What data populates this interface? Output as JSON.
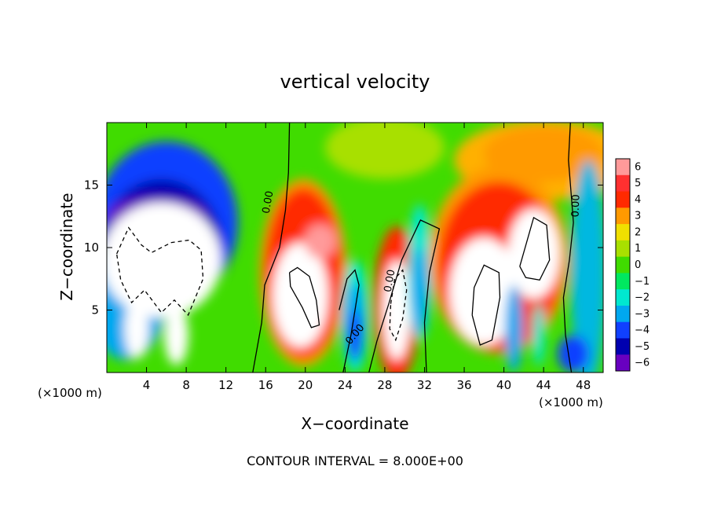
{
  "chart_data": {
    "type": "heatmap",
    "title": "vertical velocity",
    "xlabel": "X−coordinate",
    "ylabel": "Z−coordinate",
    "x_unit_label": "(×1000 m)",
    "y_unit_label": "(×1000 m)",
    "xlim": [
      0,
      50
    ],
    "ylim": [
      0,
      20
    ],
    "x_ticks": [
      4,
      8,
      12,
      16,
      20,
      24,
      28,
      32,
      36,
      40,
      44,
      48
    ],
    "y_ticks": [
      5,
      10,
      15
    ],
    "x_tick_labels": [
      "4",
      "8",
      "12",
      "16",
      "20",
      "24",
      "28",
      "32",
      "36",
      "40",
      "44",
      "48"
    ],
    "y_tick_labels": [
      "5",
      "10",
      "15"
    ],
    "colorbar": {
      "range": [
        -6,
        6
      ],
      "levels": [
        6,
        5,
        4,
        3,
        2,
        1,
        0,
        -1,
        -2,
        -3,
        -4,
        -5,
        -6
      ],
      "labels": [
        "6",
        "5",
        "4",
        "3",
        "2",
        "1",
        "0",
        "−1",
        "−2",
        "−3",
        "−4",
        "−5",
        "−6"
      ],
      "colors": [
        "#ff9a9a",
        "#ff3030",
        "#ff2a00",
        "#ff9a00",
        "#f0e000",
        "#a8e000",
        "#40dc00",
        "#00e860",
        "#00e8d0",
        "#00a8f0",
        "#1040ff",
        "#0000b0",
        "#6800c0"
      ]
    },
    "contour_labels": [
      "0.00",
      "0.00",
      "0.00",
      "0.00"
    ],
    "contour_interval_text": "CONTOUR INTERVAL = 8.000E+00",
    "features": [
      {
        "kind": "updraft",
        "x": 20,
        "z": 8,
        "sx": 3.2,
        "sz": 4.5,
        "peak": 6
      },
      {
        "kind": "updraft",
        "x": 38,
        "z": 7.5,
        "sx": 4.5,
        "sz": 5.5,
        "peak": 6
      },
      {
        "kind": "updraft",
        "x": 29,
        "z": 5,
        "sx": 1.2,
        "sz": 3.5,
        "peak": 6
      },
      {
        "kind": "downdraft",
        "x": 5,
        "z": 10,
        "sx": 5,
        "sz": 5,
        "peak": -6
      },
      {
        "kind": "downdraft",
        "x": 25,
        "z": 4,
        "sx": 1.5,
        "sz": 3.5,
        "peak": -3
      },
      {
        "kind": "downdraft",
        "x": 41,
        "z": 3,
        "sx": 1.2,
        "sz": 3,
        "peak": -3
      }
    ]
  }
}
